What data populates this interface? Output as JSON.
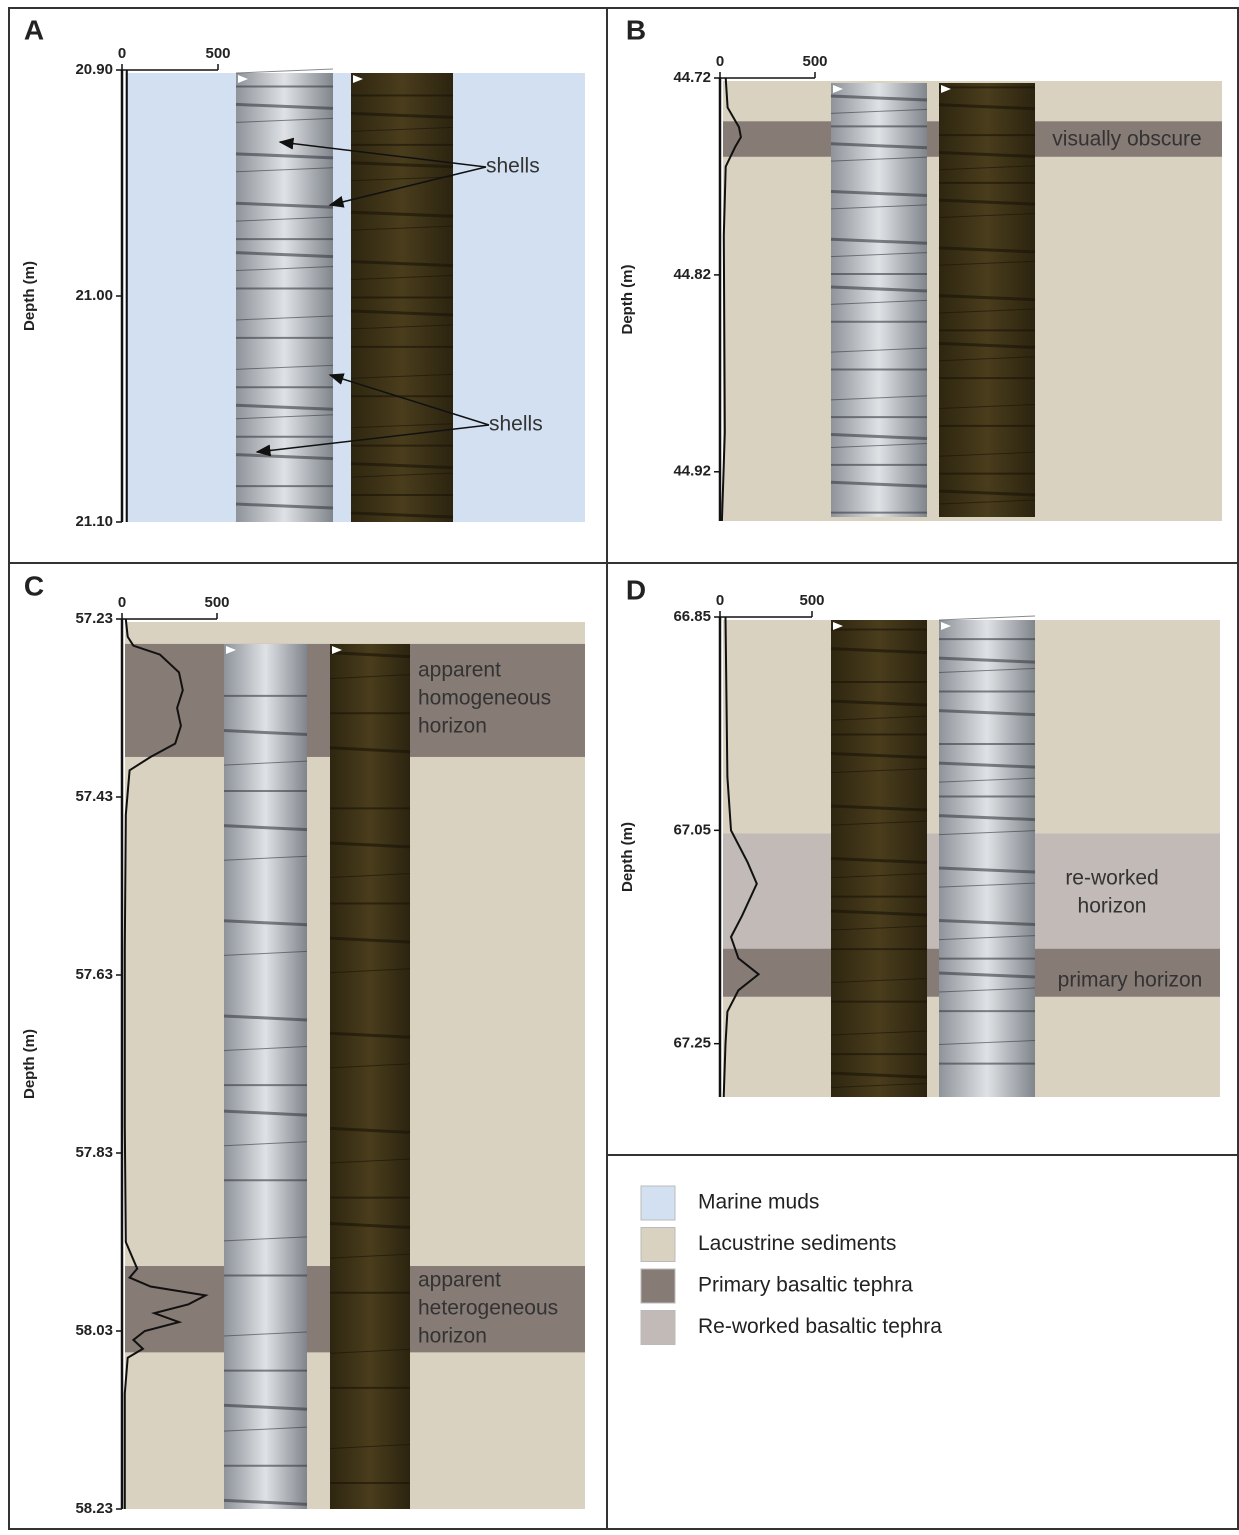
{
  "panels": [
    {
      "label": "A",
      "ylabel": "Depth (m)",
      "background": "#d3e0f2",
      "ylim": [
        20.9,
        21.1
      ],
      "yticks": [
        {
          "value": 20.9,
          "label": "20.90"
        },
        {
          "value": 21,
          "label": "21.00"
        },
        {
          "value": 21.1,
          "label": "21.10"
        }
      ],
      "xlim": [
        0,
        500
      ],
      "xticks": [
        0,
        500
      ],
      "curve": {
        "depth": [
          20.9,
          21.1
        ],
        "values": [
          25,
          25
        ]
      },
      "zones": [],
      "annotations": [
        {
          "text": [
            "shells"
          ]
        },
        {
          "text": [
            "shells"
          ]
        }
      ]
    },
    {
      "label": "B",
      "ylabel": "Depth (m)",
      "background": "#d9d2c1",
      "ylim": [
        44.72,
        44.945
      ],
      "yticks": [
        44.72,
        44.82,
        44.92
      ],
      "xlim": [
        0,
        500
      ],
      "xticks": [
        0,
        500
      ],
      "curve": {
        "depth": [
          44.72,
          44.735,
          44.745,
          44.75,
          44.755,
          44.765,
          44.8,
          44.9,
          44.93,
          44.945
        ],
        "values": [
          30,
          40,
          100,
          110,
          80,
          30,
          20,
          25,
          15,
          10
        ]
      },
      "zones": [
        {
          "from": 44.742,
          "to": 44.76,
          "color": "#877b75"
        }
      ],
      "annotations": [
        {
          "text": [
            "visually obscure"
          ]
        }
      ]
    },
    {
      "label": "C",
      "ylabel": "Depth (m)",
      "background": "#d9d2c1",
      "ylim": [
        57.23,
        58.23
      ],
      "yticks": [
        57.23,
        57.43,
        57.63,
        57.83,
        58.03,
        58.23
      ],
      "xlim": [
        0,
        500
      ],
      "xticks": [
        0,
        500
      ],
      "curve": {
        "depth": [
          57.23,
          57.25,
          57.26,
          57.27,
          57.29,
          57.31,
          57.33,
          57.35,
          57.37,
          57.385,
          57.4,
          57.45,
          57.6,
          57.8,
          57.93,
          57.96,
          57.97,
          57.98,
          57.99,
          58,
          58.01,
          58.02,
          58.03,
          58.04,
          58.05,
          58.06,
          58.1,
          58.23
        ],
        "values": [
          20,
          30,
          60,
          200,
          300,
          320,
          290,
          310,
          280,
          150,
          40,
          20,
          15,
          15,
          20,
          80,
          40,
          150,
          440,
          350,
          170,
          300,
          120,
          60,
          110,
          30,
          15,
          15
        ]
      },
      "zones": [
        {
          "from": 57.258,
          "to": 57.385,
          "color": "#877b75"
        },
        {
          "from": 57.957,
          "to": 58.054,
          "color": "#877b75"
        }
      ],
      "annotations": [
        {
          "text": [
            "apparent",
            "homogeneous",
            "horizon"
          ]
        },
        {
          "text": [
            "apparent",
            "heterogeneous",
            "horizon"
          ]
        }
      ]
    },
    {
      "label": "D",
      "ylabel": "Depth (m)",
      "background": "#d9d2c1",
      "ylim": [
        66.85,
        67.3
      ],
      "yticks": [
        66.85,
        67.05,
        67.25
      ],
      "xlim": [
        0,
        500
      ],
      "xticks": [
        0,
        500
      ],
      "curve": {
        "depth": [
          66.85,
          67,
          67.05,
          67.08,
          67.1,
          67.13,
          67.15,
          67.17,
          67.185,
          67.2,
          67.22,
          67.25,
          67.3
        ],
        "values": [
          30,
          40,
          60,
          150,
          200,
          120,
          60,
          100,
          210,
          100,
          40,
          30,
          20
        ]
      },
      "zones": [
        {
          "from": 67.053,
          "to": 67.161,
          "color": "#c1bab7"
        },
        {
          "from": 67.161,
          "to": 67.206,
          "color": "#877b75"
        }
      ],
      "annotations": [
        {
          "text": [
            "re-worked",
            "horizon"
          ]
        },
        {
          "text": [
            "primary horizon"
          ]
        }
      ]
    }
  ],
  "legend": [
    {
      "name": "Marine muds",
      "color": "#d3e0f2"
    },
    {
      "name": "Lacustrine sediments",
      "color": "#d9d2c1"
    },
    {
      "name": "Primary basaltic tephra",
      "color": "#877b75"
    },
    {
      "name": "Re-worked basaltic tephra",
      "color": "#c1bab7"
    }
  ]
}
